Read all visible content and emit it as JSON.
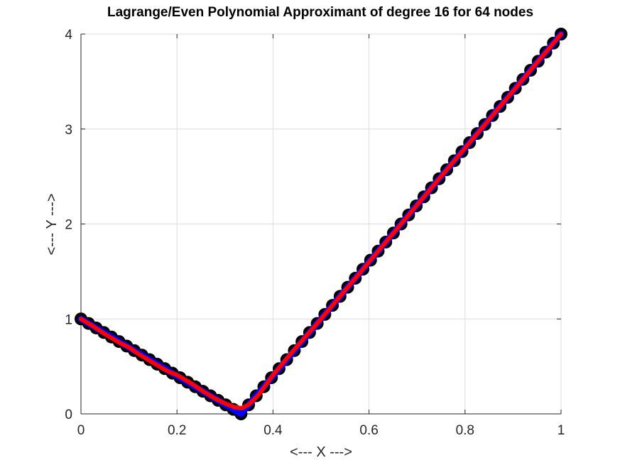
{
  "chart_data": {
    "type": "line",
    "title": "Lagrange/Even Polynomial Approximant of degree 16 for 64 nodes",
    "xlabel": "<--- X --->",
    "ylabel": "<--- Y --->",
    "xlim": [
      0,
      1
    ],
    "ylim": [
      0,
      4
    ],
    "xticks": [
      0,
      0.2,
      0.4,
      0.6,
      0.8,
      1
    ],
    "xtick_labels": [
      "0",
      "0.2",
      "0.4",
      "0.6",
      "0.8",
      "1"
    ],
    "yticks": [
      0,
      1,
      2,
      3,
      4
    ],
    "ytick_labels": [
      "0",
      "1",
      "2",
      "3",
      "4"
    ],
    "grid": true,
    "series": [
      {
        "role": "nodes",
        "marker": "circle",
        "color": "#000000",
        "x": [
          0,
          0.015873,
          0.031746,
          0.047619,
          0.063492,
          0.079365,
          0.095238,
          0.111111,
          0.126984,
          0.142857,
          0.15873,
          0.174603,
          0.190476,
          0.206349,
          0.222222,
          0.238095,
          0.253968,
          0.269841,
          0.285714,
          0.301587,
          0.31746,
          0.333333,
          0.349206,
          0.365079,
          0.380952,
          0.396825,
          0.412698,
          0.428571,
          0.444444,
          0.460317,
          0.47619,
          0.492063,
          0.507937,
          0.52381,
          0.539683,
          0.555556,
          0.571429,
          0.587302,
          0.603175,
          0.619048,
          0.634921,
          0.650794,
          0.666667,
          0.68254,
          0.698413,
          0.714286,
          0.730159,
          0.746032,
          0.761905,
          0.777778,
          0.793651,
          0.809524,
          0.825397,
          0.84127,
          0.857143,
          0.873016,
          0.888889,
          0.904762,
          0.920635,
          0.936508,
          0.952381,
          0.968254,
          0.984127,
          1
        ],
        "y": [
          1,
          0.952381,
          0.904762,
          0.857143,
          0.809524,
          0.761905,
          0.714286,
          0.666667,
          0.619048,
          0.571429,
          0.52381,
          0.47619,
          0.428571,
          0.380952,
          0.333333,
          0.285714,
          0.238095,
          0.190476,
          0.142857,
          0.095238,
          0.047619,
          0,
          0.095238,
          0.190476,
          0.285714,
          0.380952,
          0.47619,
          0.571429,
          0.666667,
          0.761905,
          0.857143,
          0.952381,
          1.047619,
          1.142857,
          1.238095,
          1.333333,
          1.428571,
          1.52381,
          1.619048,
          1.714286,
          1.809524,
          1.904762,
          2,
          2.095238,
          2.190476,
          2.285714,
          2.380952,
          2.47619,
          2.571429,
          2.666667,
          2.761905,
          2.857143,
          2.952381,
          3.047619,
          3.142857,
          3.238095,
          3.333333,
          3.428571,
          3.52381,
          3.619048,
          3.714286,
          3.809524,
          3.904762,
          4
        ]
      },
      {
        "role": "function",
        "color": "#0000ff",
        "x": [
          0,
          0.05,
          0.1,
          0.15,
          0.2,
          0.25,
          0.3,
          0.333333,
          0.35,
          0.4,
          0.45,
          0.5,
          0.55,
          0.6,
          0.65,
          0.7,
          0.75,
          0.8,
          0.85,
          0.9,
          0.95,
          1
        ],
        "y": [
          1,
          0.85,
          0.7,
          0.55,
          0.4,
          0.25,
          0.1,
          0,
          0.1,
          0.4,
          0.7,
          1,
          1.3,
          1.6,
          1.9,
          2.2,
          2.5,
          2.8,
          3.1,
          3.4,
          3.7,
          4
        ]
      },
      {
        "role": "approximant",
        "color": "#ff0000",
        "x": [
          0,
          0.02,
          0.05,
          0.08,
          0.1,
          0.12,
          0.15,
          0.18,
          0.2,
          0.23,
          0.26,
          0.28,
          0.3,
          0.32,
          0.335,
          0.35,
          0.37,
          0.4,
          0.45,
          0.5,
          0.55,
          0.6,
          0.65,
          0.7,
          0.75,
          0.8,
          0.85,
          0.9,
          0.95,
          1
        ],
        "y": [
          1,
          0.94,
          0.84,
          0.75,
          0.7,
          0.63,
          0.54,
          0.45,
          0.41,
          0.32,
          0.22,
          0.16,
          0.11,
          0.07,
          0.06,
          0.1,
          0.2,
          0.41,
          0.71,
          1.0,
          1.3,
          1.6,
          1.9,
          2.2,
          2.5,
          2.8,
          3.1,
          3.4,
          3.7,
          4
        ]
      }
    ]
  }
}
